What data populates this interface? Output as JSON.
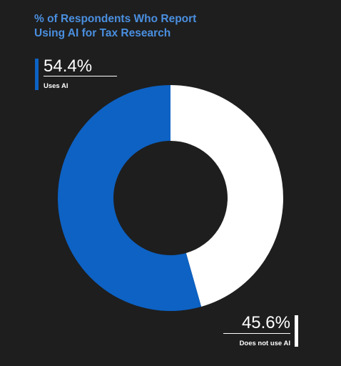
{
  "chart_data": {
    "type": "pie",
    "title_lines": [
      "% of Respondents Who Report",
      "Using AI for Tax Research"
    ],
    "slices": [
      {
        "label": "Uses AI",
        "display": "54.4%",
        "value": 54.4,
        "color": "#0d62c4"
      },
      {
        "label": "Does not use AI",
        "display": "45.6%",
        "value": 45.6,
        "color": "#ffffff"
      }
    ],
    "style": "donut",
    "background": "#1e1e1e",
    "title_color": "#4a8fe0",
    "start_angle": "12 o'clock",
    "direction": "counter-clockwise for first slice"
  }
}
